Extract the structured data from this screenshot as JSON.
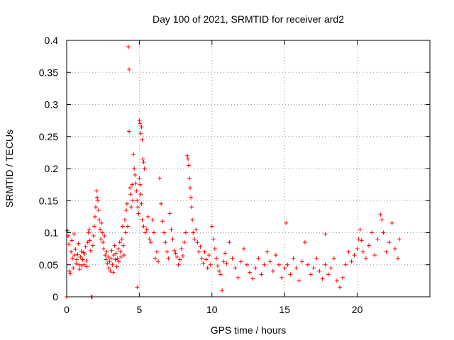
{
  "chart_data": {
    "type": "scatter",
    "title": "Day 100 of 2021, SRMTID for receiver ard2",
    "xlabel": "GPS time / hours",
    "ylabel": "SRMTID / TECUs",
    "xlim": [
      0,
      25
    ],
    "ylim": [
      0,
      0.4
    ],
    "xticks": [
      0,
      5,
      10,
      15,
      20
    ],
    "xtick_labels": [
      "0",
      "5",
      "10",
      "15",
      "20"
    ],
    "yticks": [
      0,
      0.05,
      0.1,
      0.15,
      0.2,
      0.25,
      0.3,
      0.35,
      0.4
    ],
    "ytick_labels": [
      "0",
      "0.05",
      "0.1",
      "0.15",
      "0.2",
      "0.25",
      "0.3",
      "0.35",
      "0.4"
    ],
    "grid": true,
    "marker": "plus",
    "series_color": "#ff0000",
    "series": [
      {
        "name": "ard2",
        "points": [
          [
            0.0,
            0.0
          ],
          [
            0.05,
            0.103
          ],
          [
            0.1,
            0.095
          ],
          [
            0.15,
            0.082
          ],
          [
            0.2,
            0.04
          ],
          [
            0.25,
            0.036
          ],
          [
            0.3,
            0.07
          ],
          [
            0.35,
            0.088
          ],
          [
            0.4,
            0.06
          ],
          [
            0.45,
            0.045
          ],
          [
            0.5,
            0.098
          ],
          [
            0.55,
            0.065
          ],
          [
            0.6,
            0.074
          ],
          [
            0.65,
            0.052
          ],
          [
            0.7,
            0.058
          ],
          [
            0.75,
            0.066
          ],
          [
            0.8,
            0.083
          ],
          [
            0.85,
            0.05
          ],
          [
            0.9,
            0.043
          ],
          [
            0.95,
            0.062
          ],
          [
            1.0,
            0.071
          ],
          [
            1.05,
            0.048
          ],
          [
            1.1,
            0.058
          ],
          [
            1.15,
            0.069
          ],
          [
            1.2,
            0.05
          ],
          [
            1.25,
            0.067
          ],
          [
            1.3,
            0.078
          ],
          [
            1.35,
            0.056
          ],
          [
            1.4,
            0.047
          ],
          [
            1.45,
            0.085
          ],
          [
            1.5,
            0.1
          ],
          [
            1.55,
            0.105
          ],
          [
            1.6,
            0.088
          ],
          [
            1.65,
            0.072
          ],
          [
            1.7,
            0.0
          ],
          [
            1.75,
            0.0
          ],
          [
            1.8,
            0.08
          ],
          [
            1.85,
            0.095
          ],
          [
            1.9,
            0.11
          ],
          [
            1.95,
            0.125
          ],
          [
            2.0,
            0.14
          ],
          [
            2.05,
            0.165
          ],
          [
            2.1,
            0.155
          ],
          [
            2.15,
            0.15
          ],
          [
            2.2,
            0.135
          ],
          [
            2.25,
            0.12
          ],
          [
            2.3,
            0.105
          ],
          [
            2.35,
            0.09
          ],
          [
            2.4,
            0.115
          ],
          [
            2.45,
            0.1
          ],
          [
            2.5,
            0.085
          ],
          [
            2.55,
            0.075
          ],
          [
            2.6,
            0.095
          ],
          [
            2.65,
            0.065
          ],
          [
            2.7,
            0.058
          ],
          [
            2.75,
            0.07
          ],
          [
            2.8,
            0.052
          ],
          [
            2.85,
            0.062
          ],
          [
            2.9,
            0.045
          ],
          [
            2.95,
            0.055
          ],
          [
            3.0,
            0.04
          ],
          [
            3.05,
            0.06
          ],
          [
            3.1,
            0.072
          ],
          [
            3.15,
            0.05
          ],
          [
            3.2,
            0.038
          ],
          [
            3.25,
            0.065
          ],
          [
            3.3,
            0.08
          ],
          [
            3.35,
            0.058
          ],
          [
            3.4,
            0.068
          ],
          [
            3.45,
            0.047
          ],
          [
            3.5,
            0.06
          ],
          [
            3.55,
            0.075
          ],
          [
            3.6,
            0.055
          ],
          [
            3.65,
            0.085
          ],
          [
            3.7,
            0.07
          ],
          [
            3.75,
            0.062
          ],
          [
            3.8,
            0.09
          ],
          [
            3.85,
            0.11
          ],
          [
            3.9,
            0.08
          ],
          [
            3.95,
            0.065
          ],
          [
            4.0,
            0.12
          ],
          [
            4.05,
            0.1
          ],
          [
            4.1,
            0.135
          ],
          [
            4.15,
            0.145
          ],
          [
            4.2,
            0.11
          ],
          [
            4.25,
            0.39
          ],
          [
            4.3,
            0.355
          ],
          [
            4.3,
            0.258
          ],
          [
            4.35,
            0.17
          ],
          [
            4.4,
            0.16
          ],
          [
            4.45,
            0.14
          ],
          [
            4.5,
            0.175
          ],
          [
            4.55,
            0.15
          ],
          [
            4.6,
            0.222
          ],
          [
            4.65,
            0.2
          ],
          [
            4.7,
            0.19
          ],
          [
            4.75,
            0.177
          ],
          [
            4.8,
            0.165
          ],
          [
            4.85,
            0.15
          ],
          [
            4.9,
            0.14
          ],
          [
            4.95,
            0.13
          ],
          [
            5.0,
            0.275
          ],
          [
            5.05,
            0.27
          ],
          [
            5.1,
            0.255
          ],
          [
            5.15,
            0.265
          ],
          [
            5.2,
            0.245
          ],
          [
            5.25,
            0.215
          ],
          [
            5.3,
            0.21
          ],
          [
            5.35,
            0.2
          ],
          [
            5.0,
            0.185
          ],
          [
            5.05,
            0.175
          ],
          [
            5.1,
            0.16
          ],
          [
            5.15,
            0.145
          ],
          [
            4.85,
            0.015
          ],
          [
            5.2,
            0.12
          ],
          [
            5.3,
            0.11
          ],
          [
            5.4,
            0.1
          ],
          [
            5.5,
            0.105
          ],
          [
            5.6,
            0.125
          ],
          [
            5.7,
            0.09
          ],
          [
            5.8,
            0.085
          ],
          [
            5.9,
            0.12
          ],
          [
            6.0,
            0.1
          ],
          [
            6.1,
            0.06
          ],
          [
            6.2,
            0.07
          ],
          [
            6.3,
            0.055
          ],
          [
            6.4,
            0.185
          ],
          [
            6.5,
            0.145
          ],
          [
            6.6,
            0.118
          ],
          [
            6.7,
            0.1
          ],
          [
            6.8,
            0.085
          ],
          [
            6.9,
            0.07
          ],
          [
            7.0,
            0.06
          ],
          [
            7.1,
            0.13
          ],
          [
            7.2,
            0.105
          ],
          [
            7.3,
            0.09
          ],
          [
            7.4,
            0.072
          ],
          [
            7.5,
            0.068
          ],
          [
            7.6,
            0.062
          ],
          [
            7.7,
            0.05
          ],
          [
            7.8,
            0.058
          ],
          [
            7.9,
            0.075
          ],
          [
            8.0,
            0.064
          ],
          [
            8.1,
            0.085
          ],
          [
            8.2,
            0.1
          ],
          [
            8.3,
            0.22
          ],
          [
            8.35,
            0.215
          ],
          [
            8.4,
            0.205
          ],
          [
            8.45,
            0.185
          ],
          [
            8.5,
            0.17
          ],
          [
            8.55,
            0.155
          ],
          [
            8.6,
            0.14
          ],
          [
            8.65,
            0.12
          ],
          [
            8.7,
            0.1
          ],
          [
            8.8,
            0.09
          ],
          [
            8.9,
            0.105
          ],
          [
            9.0,
            0.085
          ],
          [
            9.1,
            0.07
          ],
          [
            9.2,
            0.078
          ],
          [
            9.3,
            0.06
          ],
          [
            9.4,
            0.052
          ],
          [
            9.5,
            0.07
          ],
          [
            9.6,
            0.058
          ],
          [
            9.7,
            0.045
          ],
          [
            9.8,
            0.065
          ],
          [
            9.9,
            0.05
          ],
          [
            10.0,
            0.11
          ],
          [
            10.1,
            0.09
          ],
          [
            10.2,
            0.075
          ],
          [
            10.3,
            0.06
          ],
          [
            10.4,
            0.048
          ],
          [
            10.5,
            0.04
          ],
          [
            10.6,
            0.035
          ],
          [
            10.7,
            0.01
          ],
          [
            10.8,
            0.055
          ],
          [
            10.9,
            0.068
          ],
          [
            11.0,
            0.052
          ],
          [
            11.2,
            0.085
          ],
          [
            11.4,
            0.06
          ],
          [
            11.6,
            0.045
          ],
          [
            11.8,
            0.03
          ],
          [
            12.0,
            0.055
          ],
          [
            12.2,
            0.075
          ],
          [
            12.4,
            0.05
          ],
          [
            12.6,
            0.038
          ],
          [
            12.8,
            0.028
          ],
          [
            13.0,
            0.045
          ],
          [
            13.2,
            0.06
          ],
          [
            13.4,
            0.035
          ],
          [
            13.6,
            0.05
          ],
          [
            13.8,
            0.07
          ],
          [
            14.0,
            0.055
          ],
          [
            14.2,
            0.04
          ],
          [
            14.4,
            0.065
          ],
          [
            14.6,
            0.05
          ],
          [
            14.8,
            0.03
          ],
          [
            15.0,
            0.045
          ],
          [
            15.1,
            0.115
          ],
          [
            15.2,
            0.05
          ],
          [
            15.4,
            0.035
          ],
          [
            15.6,
            0.06
          ],
          [
            15.8,
            0.045
          ],
          [
            16.0,
            0.025
          ],
          [
            16.2,
            0.055
          ],
          [
            16.4,
            0.085
          ],
          [
            16.6,
            0.05
          ],
          [
            16.8,
            0.035
          ],
          [
            17.0,
            0.045
          ],
          [
            17.2,
            0.06
          ],
          [
            17.4,
            0.04
          ],
          [
            17.6,
            0.028
          ],
          [
            17.8,
            0.05
          ],
          [
            17.8,
            0.098
          ],
          [
            18.0,
            0.035
          ],
          [
            18.2,
            0.045
          ],
          [
            18.4,
            0.06
          ],
          [
            18.6,
            0.025
          ],
          [
            18.8,
            0.015
          ],
          [
            19.0,
            0.03
          ],
          [
            19.2,
            0.05
          ],
          [
            19.4,
            0.07
          ],
          [
            19.6,
            0.055
          ],
          [
            19.8,
            0.065
          ],
          [
            20.0,
            0.075
          ],
          [
            20.1,
            0.09
          ],
          [
            20.2,
            0.105
          ],
          [
            20.3,
            0.088
          ],
          [
            20.4,
            0.07
          ],
          [
            20.6,
            0.06
          ],
          [
            20.8,
            0.08
          ],
          [
            21.0,
            0.1
          ],
          [
            21.2,
            0.065
          ],
          [
            21.4,
            0.09
          ],
          [
            21.6,
            0.128
          ],
          [
            21.7,
            0.12
          ],
          [
            21.8,
            0.1
          ],
          [
            22.0,
            0.07
          ],
          [
            22.2,
            0.085
          ],
          [
            22.4,
            0.115
          ],
          [
            22.6,
            0.075
          ],
          [
            22.8,
            0.06
          ],
          [
            22.9,
            0.09
          ]
        ]
      }
    ]
  }
}
